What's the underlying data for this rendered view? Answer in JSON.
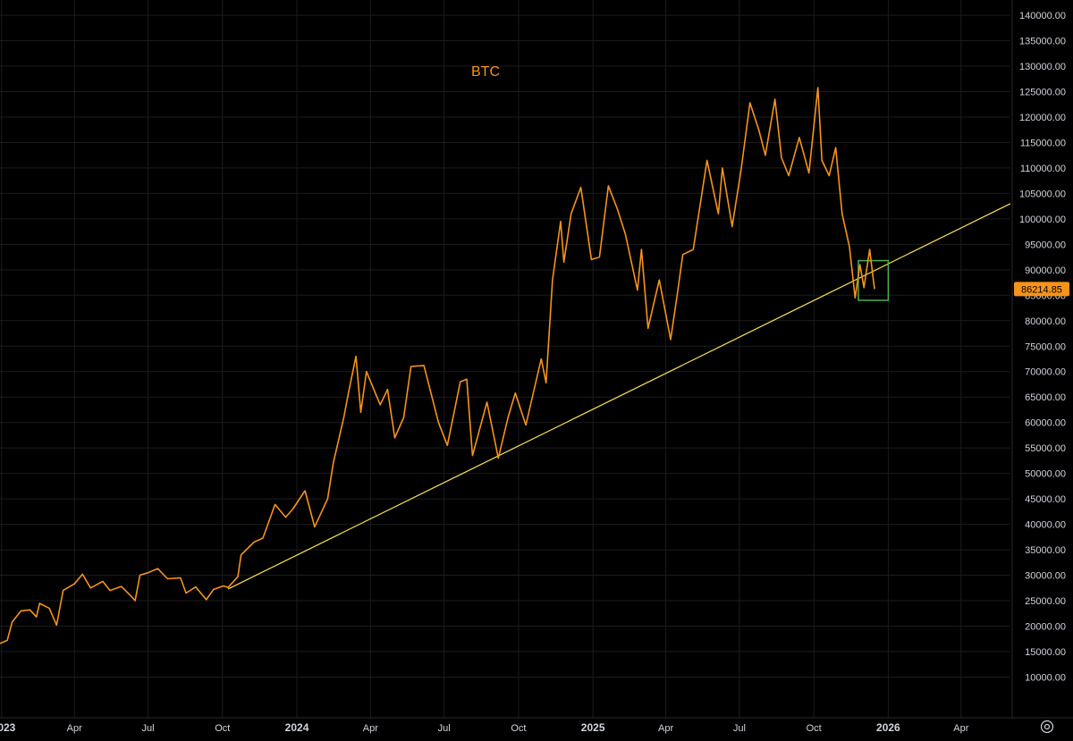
{
  "colors": {
    "background": "#000000",
    "grid": "#1c1c1c",
    "axis_text": "#d1d4dc",
    "axis_line": "#2a2a2a",
    "price_line": "#f7931a",
    "trendline": "#ffe14d",
    "highlight_box": "#4caf50",
    "price_label_bg": "#f7931a",
    "price_label_text": "#000000"
  },
  "settings_icon": "gear-icon",
  "chart_data": {
    "type": "line",
    "title": "BTC",
    "xlabel": "",
    "ylabel": "",
    "xlim": [
      "2022-12-30",
      "2026-06-01"
    ],
    "ylim": [
      2000,
      143000
    ],
    "grid": true,
    "x_ticks": [
      {
        "date": "2023-01-01",
        "label": "2023"
      },
      {
        "date": "2023-04-01",
        "label": "Apr"
      },
      {
        "date": "2023-07-01",
        "label": "Jul"
      },
      {
        "date": "2023-10-01",
        "label": "Oct"
      },
      {
        "date": "2024-01-01",
        "label": "2024"
      },
      {
        "date": "2024-04-01",
        "label": "Apr"
      },
      {
        "date": "2024-07-01",
        "label": "Jul"
      },
      {
        "date": "2024-10-01",
        "label": "Oct"
      },
      {
        "date": "2025-01-01",
        "label": "2025"
      },
      {
        "date": "2025-04-01",
        "label": "Apr"
      },
      {
        "date": "2025-07-01",
        "label": "Jul"
      },
      {
        "date": "2025-10-01",
        "label": "Oct"
      },
      {
        "date": "2026-01-01",
        "label": "2026"
      },
      {
        "date": "2026-04-01",
        "label": "Apr"
      }
    ],
    "y_ticks": [
      {
        "value": 10000,
        "label": "10000.00"
      },
      {
        "value": 15000,
        "label": "15000.00"
      },
      {
        "value": 20000,
        "label": "20000.00"
      },
      {
        "value": 25000,
        "label": "25000.00"
      },
      {
        "value": 30000,
        "label": "30000.00"
      },
      {
        "value": 35000,
        "label": "35000.00"
      },
      {
        "value": 40000,
        "label": "40000.00"
      },
      {
        "value": 45000,
        "label": "45000.00"
      },
      {
        "value": 50000,
        "label": "50000.00"
      },
      {
        "value": 55000,
        "label": "55000.00"
      },
      {
        "value": 60000,
        "label": "60000.00"
      },
      {
        "value": 65000,
        "label": "65000.00"
      },
      {
        "value": 70000,
        "label": "70000.00"
      },
      {
        "value": 75000,
        "label": "75000.00"
      },
      {
        "value": 80000,
        "label": "80000.00"
      },
      {
        "value": 85000,
        "label": "85000.00"
      },
      {
        "value": 90000,
        "label": "90000.00"
      },
      {
        "value": 95000,
        "label": "95000.00"
      },
      {
        "value": 100000,
        "label": "100000.00"
      },
      {
        "value": 105000,
        "label": "105000.00"
      },
      {
        "value": 110000,
        "label": "110000.00"
      },
      {
        "value": 115000,
        "label": "115000.00"
      },
      {
        "value": 120000,
        "label": "120000.00"
      },
      {
        "value": 125000,
        "label": "125000.00"
      },
      {
        "value": 130000,
        "label": "130000.00"
      },
      {
        "value": 135000,
        "label": "135000.00"
      },
      {
        "value": 140000,
        "label": "140000.00"
      }
    ],
    "series": [
      {
        "points": [
          [
            "2022-12-30",
            16600
          ],
          [
            "2023-01-08",
            17200
          ],
          [
            "2023-01-14",
            20800
          ],
          [
            "2023-01-25",
            23000
          ],
          [
            "2023-02-05",
            23200
          ],
          [
            "2023-02-13",
            21800
          ],
          [
            "2023-02-17",
            24500
          ],
          [
            "2023-03-01",
            23500
          ],
          [
            "2023-03-10",
            20200
          ],
          [
            "2023-03-18",
            27000
          ],
          [
            "2023-04-01",
            28300
          ],
          [
            "2023-04-11",
            30200
          ],
          [
            "2023-04-21",
            27500
          ],
          [
            "2023-05-06",
            28800
          ],
          [
            "2023-05-15",
            27000
          ],
          [
            "2023-05-29",
            27800
          ],
          [
            "2023-06-10",
            25900
          ],
          [
            "2023-06-15",
            25000
          ],
          [
            "2023-06-21",
            30000
          ],
          [
            "2023-07-01",
            30500
          ],
          [
            "2023-07-13",
            31300
          ],
          [
            "2023-07-25",
            29300
          ],
          [
            "2023-08-10",
            29500
          ],
          [
            "2023-08-17",
            26500
          ],
          [
            "2023-08-29",
            27700
          ],
          [
            "2023-09-11",
            25200
          ],
          [
            "2023-09-20",
            27200
          ],
          [
            "2023-10-02",
            27900
          ],
          [
            "2023-10-08",
            27600
          ],
          [
            "2023-10-20",
            29700
          ],
          [
            "2023-10-24",
            34000
          ],
          [
            "2023-11-09",
            36500
          ],
          [
            "2023-11-20",
            37300
          ],
          [
            "2023-12-05",
            43900
          ],
          [
            "2023-12-18",
            41400
          ],
          [
            "2023-12-27",
            43000
          ],
          [
            "2024-01-11",
            46600
          ],
          [
            "2024-01-23",
            39500
          ],
          [
            "2024-02-08",
            45000
          ],
          [
            "2024-02-15",
            52000
          ],
          [
            "2024-02-28",
            61000
          ],
          [
            "2024-03-05",
            66000
          ],
          [
            "2024-03-14",
            73000
          ],
          [
            "2024-03-20",
            62000
          ],
          [
            "2024-03-27",
            70000
          ],
          [
            "2024-04-13",
            63500
          ],
          [
            "2024-04-22",
            66500
          ],
          [
            "2024-05-01",
            57000
          ],
          [
            "2024-05-12",
            61000
          ],
          [
            "2024-05-21",
            71000
          ],
          [
            "2024-06-06",
            71200
          ],
          [
            "2024-06-24",
            60000
          ],
          [
            "2024-07-05",
            55500
          ],
          [
            "2024-07-21",
            68000
          ],
          [
            "2024-07-29",
            68500
          ],
          [
            "2024-08-05",
            53500
          ],
          [
            "2024-08-23",
            64000
          ],
          [
            "2024-09-06",
            53000
          ],
          [
            "2024-09-18",
            61000
          ],
          [
            "2024-09-27",
            65800
          ],
          [
            "2024-10-10",
            59500
          ],
          [
            "2024-10-29",
            72500
          ],
          [
            "2024-11-04",
            67800
          ],
          [
            "2024-11-12",
            88000
          ],
          [
            "2024-11-22",
            99500
          ],
          [
            "2024-11-26",
            91500
          ],
          [
            "2024-12-05",
            101000
          ],
          [
            "2024-12-17",
            106200
          ],
          [
            "2024-12-30",
            92000
          ],
          [
            "2025-01-09",
            92500
          ],
          [
            "2025-01-20",
            106500
          ],
          [
            "2025-01-31",
            102000
          ],
          [
            "2025-02-10",
            97000
          ],
          [
            "2025-02-25",
            86000
          ],
          [
            "2025-03-02",
            94000
          ],
          [
            "2025-03-10",
            78500
          ],
          [
            "2025-03-24",
            88000
          ],
          [
            "2025-04-07",
            76300
          ],
          [
            "2025-04-15",
            85000
          ],
          [
            "2025-04-22",
            93000
          ],
          [
            "2025-05-05",
            94000
          ],
          [
            "2025-05-22",
            111500
          ],
          [
            "2025-06-05",
            101000
          ],
          [
            "2025-06-10",
            110000
          ],
          [
            "2025-06-22",
            98500
          ],
          [
            "2025-07-03",
            109500
          ],
          [
            "2025-07-14",
            122800
          ],
          [
            "2025-07-25",
            117500
          ],
          [
            "2025-08-02",
            112500
          ],
          [
            "2025-08-14",
            123500
          ],
          [
            "2025-08-22",
            112000
          ],
          [
            "2025-08-31",
            108500
          ],
          [
            "2025-09-13",
            116000
          ],
          [
            "2025-09-25",
            109000
          ],
          [
            "2025-10-06",
            125800
          ],
          [
            "2025-10-11",
            111500
          ],
          [
            "2025-10-20",
            108500
          ],
          [
            "2025-10-28",
            114000
          ],
          [
            "2025-11-05",
            101000
          ],
          [
            "2025-11-14",
            94500
          ],
          [
            "2025-11-21",
            84500
          ],
          [
            "2025-11-27",
            91000
          ],
          [
            "2025-12-02",
            86500
          ],
          [
            "2025-12-09",
            94000
          ],
          [
            "2025-12-15",
            86214.85
          ]
        ]
      }
    ],
    "trendline": {
      "start": [
        "2023-10-08",
        27300
      ],
      "end": [
        "2026-06-01",
        103000
      ]
    },
    "highlight_box": {
      "x": [
        "2025-11-25",
        "2026-01-01"
      ],
      "y": [
        84000,
        91800
      ]
    },
    "last_price": {
      "value": 86214.85,
      "label": "86214.85"
    }
  }
}
